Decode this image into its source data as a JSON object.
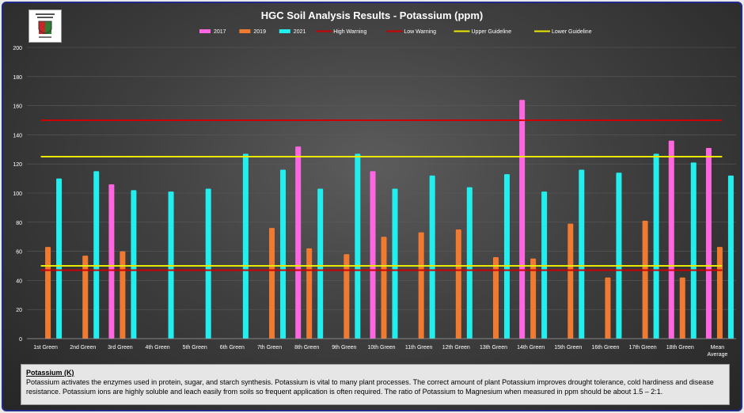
{
  "chart_data": {
    "type": "bar",
    "title": "HGC Soil Analysis Results - Potassium (ppm)",
    "categories": [
      "1st Green",
      "2nd Green",
      "3rd Green",
      "4th Green",
      "5th Green",
      "6th Green",
      "7th Green",
      "8th Green",
      "9th Green",
      "10th Green",
      "11th Green",
      "12th Green",
      "13th Green",
      "14th Green",
      "15th Green",
      "16th Green",
      "17th Green",
      "18th Green",
      "Mean Average"
    ],
    "series": [
      {
        "name": "2017",
        "color": "#ff66e0",
        "values": [
          null,
          null,
          106,
          null,
          null,
          null,
          null,
          132,
          null,
          115,
          null,
          null,
          null,
          164,
          null,
          null,
          null,
          136,
          131
        ]
      },
      {
        "name": "2019",
        "color": "#f07a30",
        "values": [
          63,
          57,
          60,
          null,
          null,
          null,
          76,
          62,
          58,
          70,
          73,
          75,
          56,
          55,
          79,
          42,
          81,
          42,
          63
        ]
      },
      {
        "name": "2021",
        "color": "#22eeee",
        "values": [
          110,
          115,
          102,
          101,
          103,
          127,
          116,
          103,
          127,
          103,
          112,
          104,
          113,
          101,
          116,
          114,
          127,
          121,
          112
        ]
      }
    ],
    "lines": [
      {
        "name": "High Warning",
        "color": "#cc0000",
        "value": 150
      },
      {
        "name": "Low Warning",
        "color": "#cc0000",
        "value": 47
      },
      {
        "name": "Upper Guideline",
        "color": "#e8e800",
        "value": 125
      },
      {
        "name": "Lower Guideline",
        "color": "#e8e800",
        "value": 50
      }
    ],
    "ylim": [
      0,
      200
    ],
    "yticks": [
      0,
      20,
      40,
      60,
      80,
      100,
      120,
      140,
      160,
      180,
      200
    ],
    "grid": true,
    "legend_position": "top"
  },
  "info": {
    "heading": "Potassium (K)",
    "text": "Potassium activates the enzymes used in protein, sugar, and starch synthesis. Potassium is vital to many plant processes. The correct amount of plant Potassium improves drought tolerance, cold hardiness and disease resistance. Potassium ions are highly soluble and leach easily from soils so frequent application is often required. The ratio of Potassium to Magnesium when measured in ppm should be about 1.5 – 2:1."
  }
}
